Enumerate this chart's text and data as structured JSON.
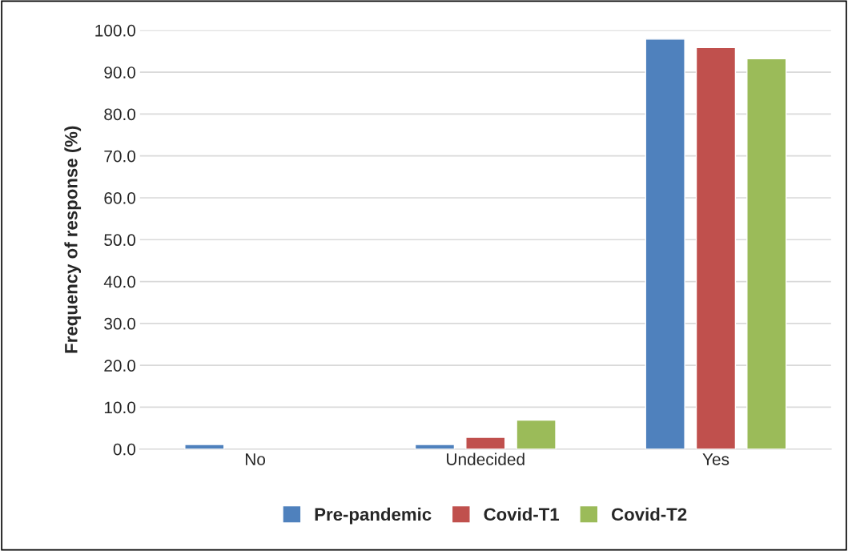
{
  "chart_data": {
    "type": "bar",
    "ylabel": "Frequency of response (%)",
    "categories": [
      "No",
      "Undecided",
      "Yes"
    ],
    "series": [
      {
        "name": "Pre-pandemic",
        "color": "#4f81bd",
        "values": [
          1.1,
          1.1,
          97.9
        ]
      },
      {
        "name": "Covid-T1",
        "color": "#c0504d",
        "values": [
          null,
          2.8,
          95.9
        ]
      },
      {
        "name": "Covid-T2",
        "color": "#9bbb59",
        "values": [
          null,
          6.9,
          93.2
        ]
      }
    ],
    "ylim": [
      0,
      100
    ],
    "yticks": [
      {
        "value": 0,
        "label": "0.0"
      },
      {
        "value": 10,
        "label": "10.0"
      },
      {
        "value": 20,
        "label": "20.0"
      },
      {
        "value": 30,
        "label": "30.0"
      },
      {
        "value": 40,
        "label": "40.0"
      },
      {
        "value": 50,
        "label": "50.0"
      },
      {
        "value": 60,
        "label": "60.0"
      },
      {
        "value": 70,
        "label": "70.0"
      },
      {
        "value": 80,
        "label": "80.0"
      },
      {
        "value": 90,
        "label": "90.0"
      },
      {
        "value": 100,
        "label": "100.0"
      }
    ],
    "grid": "y",
    "legend": "bottom"
  }
}
